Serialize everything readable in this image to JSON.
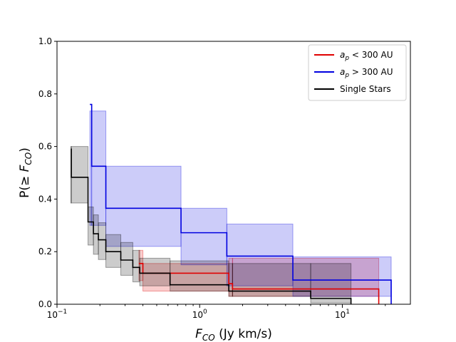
{
  "chart_data": {
    "type": "line",
    "title": "",
    "xlabel": "F_CO (Jy km/s)",
    "ylabel": "P(≥ F_CO)",
    "xscale": "log",
    "xlim": [
      0.1,
      30
    ],
    "ylim": [
      0.0,
      1.0
    ],
    "x_ticks": [
      {
        "value": 0.1,
        "base": "10",
        "exp": "−1"
      },
      {
        "value": 1,
        "base": "10",
        "exp": "0"
      },
      {
        "value": 10,
        "base": "10",
        "exp": "1"
      }
    ],
    "y_ticks": [
      "0.0",
      "0.2",
      "0.4",
      "0.6",
      "0.8",
      "1.0"
    ],
    "legend_position": "top-right",
    "series": [
      {
        "name": "a_p < 300 AU",
        "legend_label": {
          "sym": "a",
          "sub": "p",
          "rest": " < 300 AU"
        },
        "color": "#e00000",
        "step_x": [
          0.375,
          0.4,
          1.6,
          1.7,
          18.0
        ],
        "step_y": [
          0.155,
          0.118,
          0.078,
          0.058,
          0.0
        ],
        "band_x": [
          0.375,
          0.4,
          1.6,
          1.7,
          18.0
        ],
        "band_lo": [
          0.09,
          0.05,
          0.03,
          0.03
        ],
        "band_hi": [
          0.205,
          0.155,
          0.175,
          0.175
        ]
      },
      {
        "name": "a_p > 300 AU",
        "legend_label": {
          "sym": "a",
          "sub": "p",
          "rest": " > 300 AU"
        },
        "color": "#0000e0",
        "step_x": [
          0.17,
          0.175,
          0.22,
          0.74,
          1.55,
          4.5,
          22.0
        ],
        "step_y": [
          0.76,
          0.525,
          0.365,
          0.272,
          0.183,
          0.092,
          0.0
        ],
        "band_x": [
          0.17,
          0.175,
          0.22,
          0.74,
          1.55,
          4.5,
          22.0
        ],
        "band_lo": [
          0.3,
          0.3,
          0.22,
          0.15,
          0.07,
          0.03
        ],
        "band_hi": [
          0.735,
          0.735,
          0.525,
          0.365,
          0.305,
          0.18
        ]
      },
      {
        "name": "Single Stars",
        "legend_label": {
          "sym": "",
          "sub": "",
          "rest": "Single Stars"
        },
        "color": "#000000",
        "step_x": [
          0.125,
          0.126,
          0.165,
          0.18,
          0.195,
          0.22,
          0.28,
          0.34,
          0.38,
          0.62,
          1.6,
          1.7,
          6.0,
          11.5
        ],
        "step_y": [
          0.59,
          0.483,
          0.313,
          0.268,
          0.245,
          0.2,
          0.168,
          0.14,
          0.118,
          0.074,
          0.05,
          0.05,
          0.022,
          0.0
        ],
        "band_x": [
          0.125,
          0.126,
          0.165,
          0.18,
          0.195,
          0.22,
          0.28,
          0.34,
          0.38,
          0.62,
          1.6,
          1.7,
          6.0,
          11.5
        ],
        "band_lo": [
          0.385,
          0.385,
          0.225,
          0.19,
          0.17,
          0.14,
          0.11,
          0.085,
          0.07,
          0.05,
          0.03,
          0.03,
          0.005
        ],
        "band_hi": [
          0.6,
          0.6,
          0.37,
          0.34,
          0.31,
          0.265,
          0.235,
          0.205,
          0.175,
          0.165,
          0.155,
          0.155,
          0.155
        ]
      }
    ]
  }
}
